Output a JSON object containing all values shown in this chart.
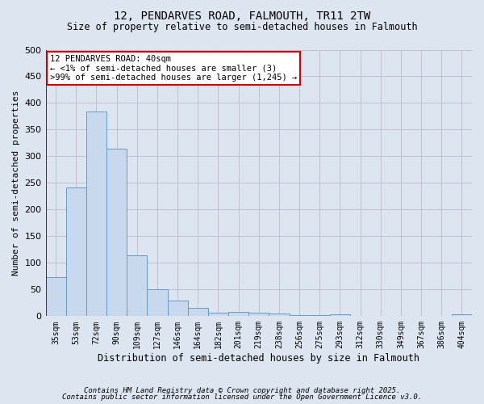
{
  "title1": "12, PENDARVES ROAD, FALMOUTH, TR11 2TW",
  "title2": "Size of property relative to semi-detached houses in Falmouth",
  "xlabel": "Distribution of semi-detached houses by size in Falmouth",
  "ylabel": "Number of semi-detached properties",
  "categories": [
    "35sqm",
    "53sqm",
    "72sqm",
    "90sqm",
    "109sqm",
    "127sqm",
    "146sqm",
    "164sqm",
    "182sqm",
    "201sqm",
    "219sqm",
    "238sqm",
    "256sqm",
    "275sqm",
    "293sqm",
    "312sqm",
    "330sqm",
    "349sqm",
    "367sqm",
    "386sqm",
    "404sqm"
  ],
  "values": [
    73,
    241,
    384,
    314,
    114,
    50,
    30,
    15,
    7,
    8,
    7,
    5,
    2,
    2,
    3,
    0,
    1,
    0,
    0,
    0,
    3
  ],
  "bar_color": "#c8d9ee",
  "bar_edge_color": "#6699cc",
  "annotation_line1": "12 PENDARVES ROAD: 40sqm",
  "annotation_line2": "← <1% of semi-detached houses are smaller (3)",
  "annotation_line3": ">99% of semi-detached houses are larger (1,245) →",
  "annotation_box_color": "#ffffff",
  "annotation_box_edge_color": "#cc0000",
  "vline_color": "#cc0000",
  "ylim": [
    0,
    500
  ],
  "yticks": [
    0,
    50,
    100,
    150,
    200,
    250,
    300,
    350,
    400,
    450,
    500
  ],
  "grid_color": "#bbbbcc",
  "bg_color": "#dde5f0",
  "plot_bg_color": "#dde5f0",
  "footnote1": "Contains HM Land Registry data © Crown copyright and database right 2025.",
  "footnote2": "Contains public sector information licensed under the Open Government Licence v3.0."
}
